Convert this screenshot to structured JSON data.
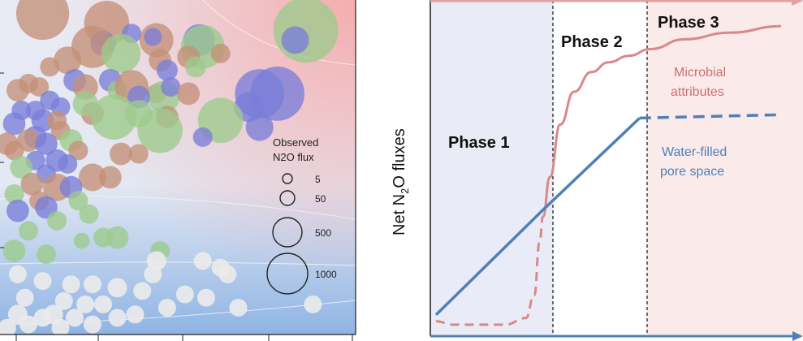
{
  "chart_data": [
    {
      "type": "scatter",
      "panel": "left",
      "legend": {
        "title_line1": "Observed",
        "title_line2": "N2O flux",
        "entries": [
          {
            "label": "5",
            "value": 5
          },
          {
            "label": "50",
            "value": 50
          },
          {
            "label": "500",
            "value": 500
          },
          {
            "label": "1000",
            "value": 1000
          }
        ]
      },
      "series_colors": {
        "brown": "#c49077",
        "green": "#9cca8c",
        "blue": "#7a7ed8",
        "white": "#ebebeb"
      },
      "background": {
        "top_right": "#f6a9a9",
        "middle": "#ececf4",
        "bottom": "#8fb4e4"
      },
      "points": [
        {
          "x": 0.12,
          "y": 0.96,
          "size": 220,
          "color": "brown"
        },
        {
          "x": 0.3,
          "y": 0.93,
          "size": 160,
          "color": "brown"
        },
        {
          "x": 0.86,
          "y": 0.91,
          "size": 340,
          "color": "green"
        },
        {
          "x": 0.44,
          "y": 0.88,
          "size": 90,
          "color": "brown"
        },
        {
          "x": 0.29,
          "y": 0.87,
          "size": 50,
          "color": "blue"
        },
        {
          "x": 0.37,
          "y": 0.9,
          "size": 30,
          "color": "blue"
        },
        {
          "x": 0.43,
          "y": 0.89,
          "size": 25,
          "color": "blue"
        },
        {
          "x": 0.56,
          "y": 0.88,
          "size": 80,
          "color": "blue"
        },
        {
          "x": 0.57,
          "y": 0.86,
          "size": 150,
          "color": "green"
        },
        {
          "x": 0.83,
          "y": 0.88,
          "size": 60,
          "color": "blue"
        },
        {
          "x": 0.26,
          "y": 0.86,
          "size": 140,
          "color": "brown"
        },
        {
          "x": 0.34,
          "y": 0.84,
          "size": 120,
          "color": "green"
        },
        {
          "x": 0.45,
          "y": 0.82,
          "size": 40,
          "color": "brown"
        },
        {
          "x": 0.53,
          "y": 0.83,
          "size": 40,
          "color": "brown"
        },
        {
          "x": 0.62,
          "y": 0.84,
          "size": 30,
          "color": "brown"
        },
        {
          "x": 0.19,
          "y": 0.82,
          "size": 60,
          "color": "brown"
        },
        {
          "x": 0.14,
          "y": 0.8,
          "size": 30,
          "color": "brown"
        },
        {
          "x": 0.47,
          "y": 0.79,
          "size": 35,
          "color": "blue"
        },
        {
          "x": 0.55,
          "y": 0.8,
          "size": 35,
          "color": "green"
        },
        {
          "x": 0.21,
          "y": 0.76,
          "size": 40,
          "color": "blue"
        },
        {
          "x": 0.24,
          "y": 0.74,
          "size": 50,
          "color": "brown"
        },
        {
          "x": 0.31,
          "y": 0.76,
          "size": 40,
          "color": "blue"
        },
        {
          "x": 0.08,
          "y": 0.75,
          "size": 30,
          "color": "brown"
        },
        {
          "x": 0.11,
          "y": 0.74,
          "size": 30,
          "color": "brown"
        },
        {
          "x": 0.05,
          "y": 0.73,
          "size": 40,
          "color": "brown"
        },
        {
          "x": 0.33,
          "y": 0.73,
          "size": 30,
          "color": "green"
        },
        {
          "x": 0.37,
          "y": 0.74,
          "size": 90,
          "color": "brown"
        },
        {
          "x": 0.44,
          "y": 0.72,
          "size": 30,
          "color": "brown"
        },
        {
          "x": 0.46,
          "y": 0.71,
          "size": 80,
          "color": "green"
        },
        {
          "x": 0.48,
          "y": 0.74,
          "size": 30,
          "color": "blue"
        },
        {
          "x": 0.39,
          "y": 0.71,
          "size": 40,
          "color": "blue"
        },
        {
          "x": 0.53,
          "y": 0.72,
          "size": 40,
          "color": "brown"
        },
        {
          "x": 0.73,
          "y": 0.72,
          "size": 190,
          "color": "blue"
        },
        {
          "x": 0.78,
          "y": 0.72,
          "size": 230,
          "color": "blue"
        },
        {
          "x": 0.7,
          "y": 0.68,
          "size": 70,
          "color": "blue"
        },
        {
          "x": 0.17,
          "y": 0.68,
          "size": 30,
          "color": "blue"
        },
        {
          "x": 0.14,
          "y": 0.7,
          "size": 30,
          "color": "blue"
        },
        {
          "x": 0.06,
          "y": 0.67,
          "size": 30,
          "color": "blue"
        },
        {
          "x": 0.1,
          "y": 0.67,
          "size": 30,
          "color": "blue"
        },
        {
          "x": 0.04,
          "y": 0.63,
          "size": 40,
          "color": "blue"
        },
        {
          "x": 0.12,
          "y": 0.64,
          "size": 40,
          "color": "blue"
        },
        {
          "x": 0.16,
          "y": 0.64,
          "size": 30,
          "color": "brown"
        },
        {
          "x": 0.26,
          "y": 0.66,
          "size": 40,
          "color": "brown"
        },
        {
          "x": 0.24,
          "y": 0.69,
          "size": 50,
          "color": "green"
        },
        {
          "x": 0.32,
          "y": 0.65,
          "size": 160,
          "color": "green"
        },
        {
          "x": 0.39,
          "y": 0.66,
          "size": 60,
          "color": "green"
        },
        {
          "x": 0.47,
          "y": 0.65,
          "size": 40,
          "color": "brown"
        },
        {
          "x": 0.62,
          "y": 0.64,
          "size": 160,
          "color": "green"
        },
        {
          "x": 0.73,
          "y": 0.62,
          "size": 60,
          "color": "blue"
        },
        {
          "x": 0.17,
          "y": 0.61,
          "size": 30,
          "color": "brown"
        },
        {
          "x": 0.1,
          "y": 0.59,
          "size": 40,
          "color": "blue"
        },
        {
          "x": 0.08,
          "y": 0.58,
          "size": 40,
          "color": "brown"
        },
        {
          "x": 0.45,
          "y": 0.61,
          "size": 160,
          "color": "green"
        },
        {
          "x": 0.57,
          "y": 0.59,
          "size": 30,
          "color": "blue"
        },
        {
          "x": 0.2,
          "y": 0.58,
          "size": 40,
          "color": "green"
        },
        {
          "x": 0.13,
          "y": 0.57,
          "size": 40,
          "color": "blue"
        },
        {
          "x": 0.04,
          "y": 0.55,
          "size": 30,
          "color": "brown"
        },
        {
          "x": 0.02,
          "y": 0.57,
          "size": 40,
          "color": "brown"
        },
        {
          "x": 0.22,
          "y": 0.55,
          "size": 30,
          "color": "brown"
        },
        {
          "x": 0.34,
          "y": 0.54,
          "size": 40,
          "color": "brown"
        },
        {
          "x": 0.39,
          "y": 0.54,
          "size": 30,
          "color": "brown"
        },
        {
          "x": 0.1,
          "y": 0.52,
          "size": 30,
          "color": "blue"
        },
        {
          "x": 0.16,
          "y": 0.52,
          "size": 40,
          "color": "blue"
        },
        {
          "x": 0.19,
          "y": 0.51,
          "size": 30,
          "color": "blue"
        },
        {
          "x": 0.06,
          "y": 0.5,
          "size": 40,
          "color": "green"
        },
        {
          "x": 0.13,
          "y": 0.48,
          "size": 30,
          "color": "blue"
        },
        {
          "x": 0.26,
          "y": 0.47,
          "size": 60,
          "color": "brown"
        },
        {
          "x": 0.31,
          "y": 0.47,
          "size": 40,
          "color": "brown"
        },
        {
          "x": 0.09,
          "y": 0.45,
          "size": 40,
          "color": "brown"
        },
        {
          "x": 0.16,
          "y": 0.44,
          "size": 60,
          "color": "brown"
        },
        {
          "x": 0.2,
          "y": 0.44,
          "size": 40,
          "color": "blue"
        },
        {
          "x": 0.04,
          "y": 0.42,
          "size": 30,
          "color": "green"
        },
        {
          "x": 0.22,
          "y": 0.4,
          "size": 30,
          "color": "green"
        },
        {
          "x": 0.11,
          "y": 0.4,
          "size": 30,
          "color": "brown"
        },
        {
          "x": 0.13,
          "y": 0.38,
          "size": 40,
          "color": "blue"
        },
        {
          "x": 0.05,
          "y": 0.37,
          "size": 40,
          "color": "blue"
        },
        {
          "x": 0.25,
          "y": 0.36,
          "size": 30,
          "color": "green"
        },
        {
          "x": 0.16,
          "y": 0.34,
          "size": 30,
          "color": "green"
        },
        {
          "x": 0.08,
          "y": 0.31,
          "size": 30,
          "color": "green"
        },
        {
          "x": 0.33,
          "y": 0.29,
          "size": 40,
          "color": "green"
        },
        {
          "x": 0.29,
          "y": 0.29,
          "size": 30,
          "color": "green"
        },
        {
          "x": 0.23,
          "y": 0.28,
          "size": 20,
          "color": "green"
        },
        {
          "x": 0.04,
          "y": 0.25,
          "size": 40,
          "color": "green"
        },
        {
          "x": 0.45,
          "y": 0.25,
          "size": 30,
          "color": "green"
        },
        {
          "x": 0.13,
          "y": 0.24,
          "size": 30,
          "color": "green"
        },
        {
          "x": 0.05,
          "y": 0.18,
          "size": 25,
          "color": "white"
        },
        {
          "x": 0.44,
          "y": 0.22,
          "size": 30,
          "color": "white"
        },
        {
          "x": 0.57,
          "y": 0.22,
          "size": 25,
          "color": "white"
        },
        {
          "x": 0.62,
          "y": 0.2,
          "size": 25,
          "color": "white"
        },
        {
          "x": 0.64,
          "y": 0.18,
          "size": 25,
          "color": "white"
        },
        {
          "x": 0.43,
          "y": 0.18,
          "size": 25,
          "color": "white"
        },
        {
          "x": 0.12,
          "y": 0.16,
          "size": 25,
          "color": "white"
        },
        {
          "x": 0.2,
          "y": 0.15,
          "size": 25,
          "color": "white"
        },
        {
          "x": 0.26,
          "y": 0.15,
          "size": 25,
          "color": "white"
        },
        {
          "x": 0.33,
          "y": 0.14,
          "size": 30,
          "color": "white"
        },
        {
          "x": 0.4,
          "y": 0.13,
          "size": 25,
          "color": "white"
        },
        {
          "x": 0.52,
          "y": 0.12,
          "size": 25,
          "color": "white"
        },
        {
          "x": 0.58,
          "y": 0.11,
          "size": 25,
          "color": "white"
        },
        {
          "x": 0.07,
          "y": 0.11,
          "size": 25,
          "color": "white"
        },
        {
          "x": 0.18,
          "y": 0.1,
          "size": 25,
          "color": "white"
        },
        {
          "x": 0.24,
          "y": 0.09,
          "size": 25,
          "color": "white"
        },
        {
          "x": 0.29,
          "y": 0.09,
          "size": 25,
          "color": "white"
        },
        {
          "x": 0.47,
          "y": 0.08,
          "size": 25,
          "color": "white"
        },
        {
          "x": 0.67,
          "y": 0.08,
          "size": 25,
          "color": "white"
        },
        {
          "x": 0.88,
          "y": 0.09,
          "size": 25,
          "color": "white"
        },
        {
          "x": 0.05,
          "y": 0.06,
          "size": 30,
          "color": "white"
        },
        {
          "x": 0.12,
          "y": 0.05,
          "size": 25,
          "color": "white"
        },
        {
          "x": 0.15,
          "y": 0.06,
          "size": 30,
          "color": "white"
        },
        {
          "x": 0.21,
          "y": 0.05,
          "size": 25,
          "color": "white"
        },
        {
          "x": 0.33,
          "y": 0.05,
          "size": 25,
          "color": "white"
        },
        {
          "x": 0.38,
          "y": 0.06,
          "size": 25,
          "color": "white"
        },
        {
          "x": 0.08,
          "y": 0.03,
          "size": 25,
          "color": "white"
        },
        {
          "x": 0.17,
          "y": 0.02,
          "size": 25,
          "color": "white"
        },
        {
          "x": 0.26,
          "y": 0.03,
          "size": 25,
          "color": "white"
        },
        {
          "x": 0.02,
          "y": 0.02,
          "size": 25,
          "color": "white"
        }
      ]
    },
    {
      "type": "line",
      "panel": "right",
      "ylabel_main": "Net N",
      "ylabel_sub": "2",
      "ylabel_end": "O fluxes",
      "phases": [
        {
          "label": "Phase 1",
          "start": 0,
          "end": 0.31,
          "color": "#e9ecf6"
        },
        {
          "label": "Phase 2",
          "start": 0.31,
          "end": 0.59,
          "color": "#ffffff"
        },
        {
          "label": "Phase 3",
          "start": 0.59,
          "end": 1.0,
          "color": "#fbeaea"
        }
      ],
      "series": [
        {
          "name_line1": "Microbial",
          "name_line2": "attributes",
          "color": "#d98888",
          "x": [
            0,
            0.05,
            0.2,
            0.26,
            0.285,
            0.3,
            0.31,
            0.33,
            0.36,
            0.4,
            0.45,
            0.5,
            0.56,
            0.62,
            0.72,
            0.85,
            1.0
          ],
          "y": [
            0.04,
            0.03,
            0.03,
            0.05,
            0.12,
            0.28,
            0.36,
            0.48,
            0.64,
            0.74,
            0.8,
            0.83,
            0.85,
            0.87,
            0.9,
            0.92,
            0.94
          ],
          "dashed_until_x": 0.31
        },
        {
          "name_line1": "Water-filled",
          "name_line2": "pore space",
          "color": "#4f7fb7",
          "x": [
            0,
            0.31,
            0.59,
            1.0
          ],
          "y": [
            0.06,
            0.38,
            0.66,
            0.67
          ],
          "dashed_from_x": 0.59
        }
      ]
    }
  ]
}
